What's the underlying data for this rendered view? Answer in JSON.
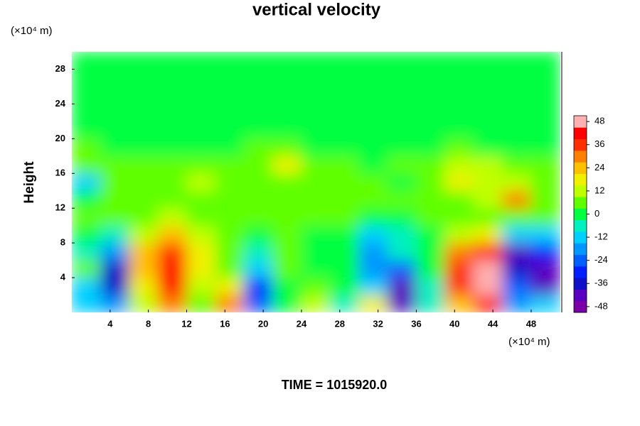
{
  "chart_data": {
    "type": "contour",
    "title": "vertical velocity",
    "ylabel": "Height",
    "yunit": "(×10⁴ m)",
    "xunit": "(×10⁴ m)",
    "footer": "TIME = 1015920.0",
    "xlim": [
      0,
      51.2
    ],
    "ylim": [
      0,
      30
    ],
    "xticks": [
      4,
      8,
      12,
      16,
      20,
      24,
      28,
      32,
      36,
      40,
      44,
      48
    ],
    "yticks": [
      4,
      8,
      12,
      16,
      20,
      24,
      28
    ],
    "x": [
      1.5,
      4.5,
      7.5,
      10.5,
      13.5,
      16.5,
      19.5,
      22.5,
      25.5,
      28.5,
      31.5,
      34.5,
      37.5,
      40.5,
      43.5,
      46.5,
      49.5
    ],
    "y": [
      1,
      3,
      5,
      7,
      9,
      11,
      13,
      15,
      17,
      19,
      21,
      23,
      25,
      27,
      29
    ],
    "z": [
      [
        -15,
        -20,
        10,
        30,
        8,
        30,
        -25,
        0,
        10,
        -5,
        15,
        -40,
        -5,
        25,
        40,
        -20,
        -15
      ],
      [
        -12,
        -34,
        20,
        40,
        12,
        15,
        -30,
        2,
        4,
        2,
        -15,
        -40,
        -5,
        35,
        48,
        -25,
        -40
      ],
      [
        8,
        -36,
        25,
        42,
        18,
        6,
        -15,
        4,
        2,
        2,
        -20,
        -25,
        -2,
        38,
        48,
        -35,
        -42
      ],
      [
        -5,
        -20,
        22,
        35,
        15,
        6,
        -5,
        3,
        2,
        0,
        -20,
        -8,
        0,
        30,
        42,
        -42,
        -30
      ],
      [
        2,
        -6,
        12,
        22,
        10,
        4,
        2,
        4,
        2,
        2,
        -10,
        -4,
        2,
        12,
        20,
        -15,
        -15
      ],
      [
        6,
        4,
        8,
        10,
        8,
        6,
        5,
        5,
        4,
        4,
        2,
        2,
        4,
        8,
        8,
        6,
        4
      ],
      [
        0,
        6,
        4,
        6,
        8,
        6,
        4,
        6,
        8,
        4,
        6,
        4,
        4,
        6,
        10,
        30,
        8
      ],
      [
        -12,
        4,
        6,
        4,
        10,
        4,
        6,
        8,
        6,
        6,
        4,
        2,
        6,
        20,
        10,
        10,
        8
      ],
      [
        4,
        6,
        8,
        4,
        6,
        6,
        8,
        16,
        4,
        4,
        2,
        4,
        8,
        14,
        12,
        6,
        6
      ],
      [
        4,
        2,
        2,
        2,
        2,
        2,
        4,
        4,
        2,
        2,
        2,
        2,
        2,
        4,
        2,
        2,
        2
      ],
      [
        0,
        2,
        0,
        0,
        2,
        0,
        0,
        0,
        0,
        0,
        0,
        0,
        0,
        0,
        0,
        0,
        0
      ],
      [
        0,
        0,
        0,
        0,
        0,
        0,
        0,
        0,
        0,
        0,
        0,
        0,
        0,
        0,
        0,
        0,
        0
      ],
      [
        0,
        0,
        0,
        0,
        0,
        0,
        0,
        0,
        0,
        0,
        0,
        0,
        0,
        0,
        0,
        0,
        0
      ],
      [
        0,
        0,
        0,
        0,
        0,
        0,
        0,
        0,
        0,
        0,
        0,
        0,
        0,
        0,
        0,
        0,
        0
      ],
      [
        0,
        0,
        0,
        0,
        0,
        0,
        0,
        0,
        0,
        0,
        0,
        0,
        0,
        0,
        0,
        0,
        0
      ]
    ],
    "clim": [
      -48,
      48
    ],
    "colors": [
      "#7b00a8",
      "#5a00c0",
      "#1010c8",
      "#0020ff",
      "#0060ff",
      "#0098ff",
      "#00d0ff",
      "#00f0c0",
      "#00ff40",
      "#60ff00",
      "#c0ff00",
      "#f0f000",
      "#ffc000",
      "#ff8000",
      "#ff3000",
      "#ff0000",
      "#ffb0b0"
    ],
    "cticks": [
      -48,
      -36,
      -24,
      -12,
      0,
      12,
      24,
      36,
      48
    ]
  }
}
